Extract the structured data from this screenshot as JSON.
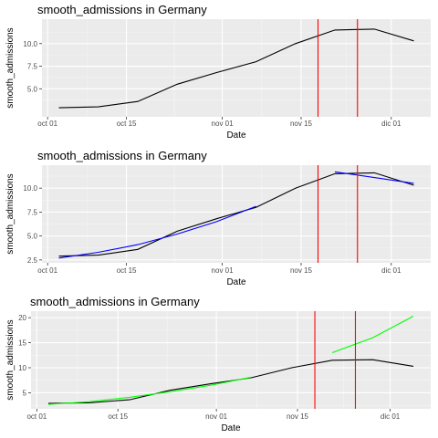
{
  "chart_data": [
    {
      "type": "line",
      "title": "smooth_admissions in Germany",
      "xlabel": "Date",
      "ylabel": "smooth_admissions",
      "x_ticks": [
        "oct 01",
        "oct 15",
        "nov 01",
        "nov 15",
        "dic 01"
      ],
      "y_ticks": [
        "5.0",
        "7.5",
        "10.0"
      ],
      "ylim": [
        1.9,
        12.7
      ],
      "grid": true,
      "vlines": {
        "dates": [
          "2020-11-18",
          "2020-11-25"
        ],
        "color": "#ff0000"
      },
      "series": [
        {
          "color": "#000000",
          "x": [
            "2020-10-03",
            "2020-10-10",
            "2020-10-17",
            "2020-10-24",
            "2020-10-31",
            "2020-11-07",
            "2020-11-14",
            "2020-11-21",
            "2020-11-28",
            "2020-12-05"
          ],
          "y": [
            2.9,
            3.0,
            3.6,
            5.5,
            6.8,
            8.0,
            10.0,
            11.5,
            11.6,
            10.3
          ]
        }
      ]
    },
    {
      "type": "line",
      "title": "smooth_admissions in Germany",
      "xlabel": "Date",
      "ylabel": "smooth_admissions",
      "x_ticks": [
        "oct 01",
        "oct 15",
        "nov 01",
        "nov 15",
        "dic 01"
      ],
      "y_ticks": [
        "2.5",
        "5.0",
        "7.5",
        "10.0"
      ],
      "ylim": [
        2.2,
        12.4
      ],
      "grid": true,
      "vlines": {
        "dates": [
          "2020-11-18",
          "2020-11-25"
        ],
        "color": "#ff0000"
      },
      "series": [
        {
          "color": "#000000",
          "x": [
            "2020-10-03",
            "2020-10-10",
            "2020-10-17",
            "2020-10-24",
            "2020-10-31",
            "2020-11-07",
            "2020-11-14",
            "2020-11-21",
            "2020-11-28",
            "2020-12-05"
          ],
          "y": [
            2.9,
            3.0,
            3.6,
            5.5,
            6.8,
            8.0,
            10.0,
            11.5,
            11.6,
            10.3
          ]
        },
        {
          "color": "#0000ff",
          "x": [
            "2020-10-03",
            "2020-10-10",
            "2020-10-17",
            "2020-10-24",
            "2020-10-31",
            "2020-11-07"
          ],
          "y": [
            2.7,
            3.3,
            4.1,
            5.2,
            6.5,
            8.1
          ]
        },
        {
          "color": "#0000ff",
          "x": [
            "2020-11-21",
            "2020-11-28",
            "2020-12-05"
          ],
          "y": [
            11.7,
            11.1,
            10.5
          ]
        }
      ]
    },
    {
      "type": "line",
      "title": "smooth_admissions in Germany",
      "xlabel": "Date",
      "ylabel": "smooth_admissions",
      "x_ticks": [
        "oct 01",
        "oct 15",
        "nov 01",
        "nov 15",
        "dic 01"
      ],
      "y_ticks": [
        "5",
        "10",
        "15",
        "20"
      ],
      "ylim": [
        1.8,
        21.3
      ],
      "grid": true,
      "vlines": {
        "dates": [
          "2020-11-18",
          "2020-11-25"
        ],
        "color": "#ff0000"
      },
      "series": [
        {
          "color": "#000000",
          "x": [
            "2020-10-03",
            "2020-10-10",
            "2020-10-17",
            "2020-10-24",
            "2020-10-31",
            "2020-11-07",
            "2020-11-14",
            "2020-11-21",
            "2020-11-28",
            "2020-12-05"
          ],
          "y": [
            2.9,
            3.0,
            3.6,
            5.5,
            6.8,
            8.0,
            10.0,
            11.5,
            11.6,
            10.3
          ]
        },
        {
          "color": "#00ff00",
          "x": [
            "2020-10-03",
            "2020-10-10",
            "2020-10-17",
            "2020-10-24",
            "2020-10-31",
            "2020-11-07"
          ],
          "y": [
            2.7,
            3.2,
            4.1,
            5.2,
            6.5,
            8.1
          ]
        },
        {
          "color": "#00ff00",
          "x": [
            "2020-11-21",
            "2020-11-28",
            "2020-12-05"
          ],
          "y": [
            13.0,
            16.0,
            20.3
          ]
        }
      ]
    }
  ]
}
